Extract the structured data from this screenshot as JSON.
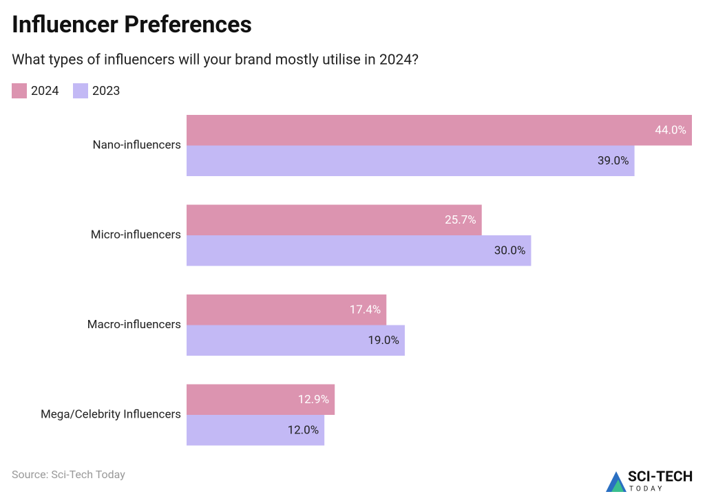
{
  "chart_data": {
    "type": "bar",
    "orientation": "horizontal",
    "title": "Influencer Preferences",
    "subtitle": "What types of influencers will your brand mostly utilise in 2024?",
    "categories": [
      "Nano-influencers",
      "Micro-influencers",
      "Macro-influencers",
      "Mega/Celebrity Influencers"
    ],
    "series": [
      {
        "name": "2024",
        "color": "#dc94b0",
        "values": [
          44.0,
          25.7,
          17.4,
          12.9
        ],
        "value_labels": [
          "44.0%",
          "25.7%",
          "17.4%",
          "12.9%"
        ]
      },
      {
        "name": "2023",
        "color": "#c3b9f5",
        "values": [
          39.0,
          30.0,
          19.0,
          12.0
        ],
        "value_labels": [
          "39.0%",
          "30.0%",
          "19.0%",
          "12.0%"
        ]
      }
    ],
    "legend": "top-left",
    "source": "Source: Sci-Tech Today",
    "logo": {
      "name": "SCI-TECH",
      "tagline": "TODAY"
    }
  }
}
